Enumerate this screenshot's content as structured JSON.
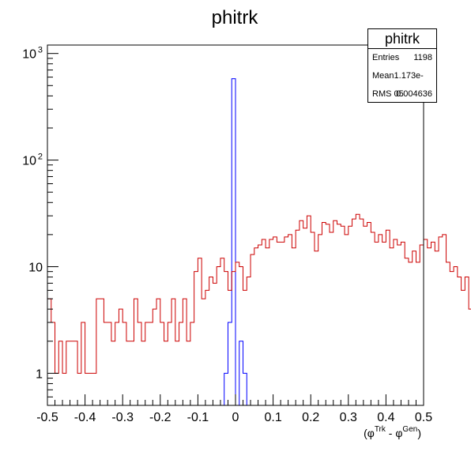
{
  "chart_data": {
    "type": "histogram",
    "title": "phitrk",
    "xlabel": "",
    "xlim": [
      -0.5,
      0.5
    ],
    "ylim": [
      0.5,
      1200
    ],
    "yscale": "log",
    "bin_width": 0.01,
    "x_ticks": [
      "-0.5",
      "-0.4",
      "-0.3",
      "-0.2",
      "-0.1",
      "0",
      "0.1",
      "0.2",
      "0.3",
      "0.4",
      "0.5"
    ],
    "y_ticks": [
      {
        "value": 1,
        "label": "1"
      },
      {
        "value": 10,
        "label": "10"
      },
      {
        "value": 100,
        "label": "10",
        "exp": "2"
      },
      {
        "value": 1000,
        "label": "10",
        "exp": "3"
      }
    ],
    "axis_title": {
      "base1": "(φ",
      "sup1": "Trk",
      "mid": " - φ",
      "sup2": "Gen",
      "end": ")"
    },
    "series": [
      {
        "color": "#0000ff",
        "x_start": -0.03,
        "counts": [
          1,
          3,
          580,
          0,
          2,
          1,
          0
        ]
      },
      {
        "color": "#cc0000",
        "x_start": -0.5,
        "counts": [
          5,
          3,
          1,
          2,
          1,
          2,
          2,
          2,
          1,
          3,
          1,
          1,
          1,
          5,
          5,
          3,
          3,
          2,
          3,
          4,
          3,
          2,
          2,
          5,
          3,
          2,
          3,
          3,
          4,
          5,
          3,
          2,
          3,
          5,
          2,
          3,
          5,
          2,
          3,
          9,
          12,
          5,
          6,
          8,
          7,
          10,
          12,
          9,
          6,
          9,
          11,
          10,
          6,
          8,
          13,
          15,
          16,
          18,
          15,
          18,
          19,
          17,
          17,
          19,
          20,
          15,
          22,
          27,
          23,
          30,
          21,
          14,
          20,
          26,
          25,
          21,
          27,
          25,
          24,
          20,
          24,
          28,
          31,
          28,
          24,
          26,
          21,
          17,
          20,
          17,
          22,
          15,
          18,
          16,
          17,
          12,
          11,
          14,
          11,
          16,
          18,
          15,
          17,
          14,
          19,
          20,
          11,
          9,
          10,
          8,
          6,
          8,
          4,
          4,
          6,
          4,
          4,
          4,
          7,
          6,
          3,
          2,
          3,
          3,
          4,
          4,
          3,
          4,
          5,
          7,
          6,
          2,
          3,
          5,
          5,
          4,
          4,
          5,
          4,
          4,
          3,
          3,
          2,
          3,
          2,
          2,
          1,
          1,
          2,
          3,
          6,
          4,
          4,
          4,
          4,
          6,
          3,
          2,
          3,
          3,
          2,
          1,
          3,
          4,
          5,
          1,
          3,
          3,
          2,
          4,
          2,
          2,
          2,
          4,
          2,
          3,
          2,
          4,
          2,
          3,
          2,
          2,
          3,
          2,
          2,
          2,
          1,
          2,
          3,
          2,
          2,
          2,
          1,
          1,
          2,
          2,
          1,
          2,
          1,
          1
        ]
      }
    ]
  },
  "stats": {
    "title": "phitrk",
    "entries_label": "Entries",
    "entries_value": "1198",
    "mean_label": "Mean",
    "mean_value": "1.173e-05",
    "rms_label": "RMS",
    "rms_value": "0.004636"
  }
}
